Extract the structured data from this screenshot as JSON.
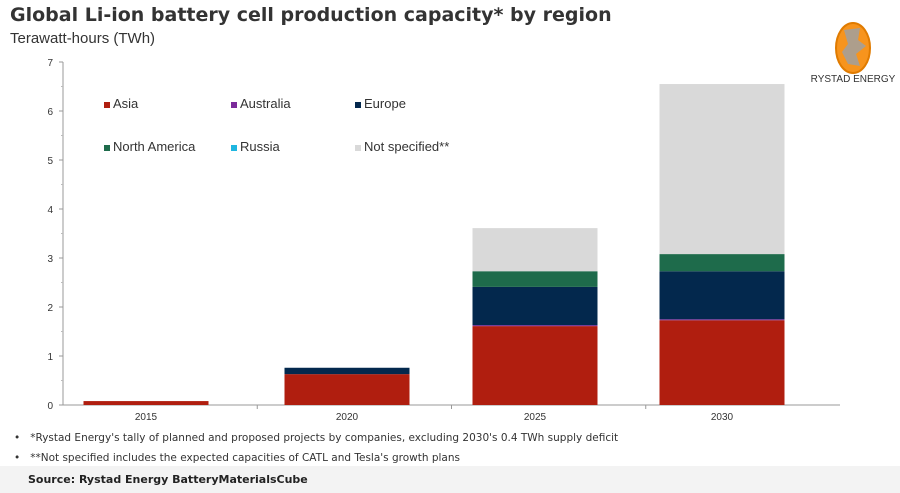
{
  "title": "Global Li-ion battery cell production capacity* by region",
  "subtitle": "Terawatt-hours (TWh)",
  "logo": {
    "text": "RYSTAD ENERGY",
    "colors": [
      "#f7941d",
      "#9e9e9e"
    ]
  },
  "notes": [
    "*Rystad Energy's tally of planned and proposed projects by companies, excluding 2030's 0.4 TWh supply deficit",
    "**Not specified includes the expected capacities of CATL and Tesla's growth plans"
  ],
  "source": "Source: Rystad Energy BatteryMaterialsCube",
  "chart_data": {
    "type": "bar",
    "stacked": true,
    "categories": [
      "2015",
      "2020",
      "2025",
      "2030"
    ],
    "ylim": [
      0,
      7
    ],
    "yticks": [
      "0",
      "1",
      "2",
      "3",
      "4",
      "5",
      "6",
      "7"
    ],
    "ylabel": "Terawatt-hours (TWh)",
    "grid": false,
    "legend_placement": "top-left",
    "series": [
      {
        "name": "Asia",
        "color": "#b01e0f",
        "values": [
          0.08,
          0.63,
          1.61,
          1.73
        ]
      },
      {
        "name": "Australia",
        "color": "#7b2a9a",
        "values": [
          0,
          0,
          0.02,
          0.02
        ]
      },
      {
        "name": "Europe",
        "color": "#03284d",
        "values": [
          0,
          0.13,
          0.78,
          0.98
        ]
      },
      {
        "name": "North America",
        "color": "#1e6b4b",
        "values": [
          0,
          0,
          0.32,
          0.35
        ]
      },
      {
        "name": "Russia",
        "color": "#1fb6e0",
        "values": [
          0,
          0,
          0,
          0
        ]
      },
      {
        "name": "Not specified**",
        "color": "#d9d9d9",
        "values": [
          0,
          0,
          0.88,
          3.47
        ]
      }
    ]
  }
}
